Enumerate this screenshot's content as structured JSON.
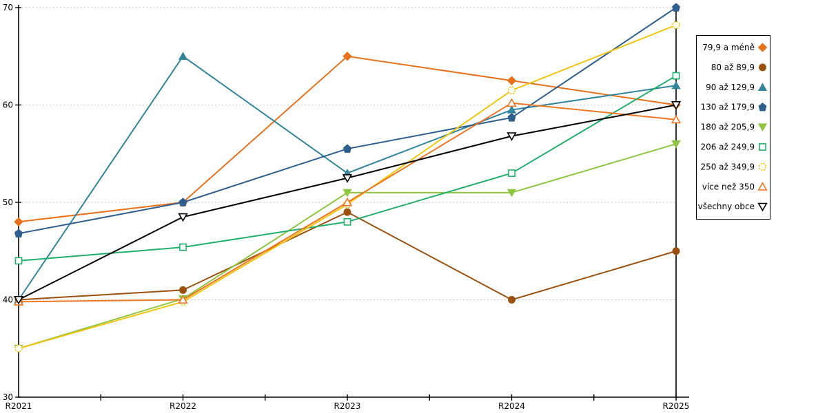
{
  "chart_data": {
    "type": "line",
    "title": "",
    "xlabel": "",
    "ylabel": "",
    "categories": [
      "R2021",
      "R2022",
      "R2023",
      "R2024",
      "R2025"
    ],
    "ylim": [
      30,
      70
    ],
    "yticks": [
      30,
      40,
      50,
      60,
      70
    ],
    "gridlines": [
      40,
      50,
      60,
      70
    ],
    "grid": "horizontal-dotted",
    "legend_position": "right",
    "background_color": "#ffffff",
    "axis_color": "#000000",
    "gridline_color": "#c6c6c6",
    "series": [
      {
        "name": "79,9 a méně",
        "color": "#e8701a",
        "marker": "diamond",
        "style": "filled",
        "values": [
          48,
          50,
          65,
          62.5,
          60
        ]
      },
      {
        "name": "80 až 89,9",
        "color": "#9c500f",
        "marker": "circle",
        "style": "filled",
        "values": [
          40,
          41,
          49,
          40,
          45
        ]
      },
      {
        "name": "90 až 129,9",
        "color": "#31859c",
        "marker": "triangle-up",
        "style": "filled",
        "values": [
          40,
          65,
          53,
          59.5,
          62
        ]
      },
      {
        "name": "130 až 179,9",
        "color": "#2e5f8e",
        "marker": "pentagon",
        "style": "filled",
        "values": [
          46.8,
          50,
          55.5,
          58.7,
          70
        ]
      },
      {
        "name": "180 až 205,9",
        "color": "#8ec641",
        "marker": "triangle-down",
        "style": "filled",
        "values": [
          35,
          40.1,
          51,
          51,
          56
        ]
      },
      {
        "name": "206 až 249,9",
        "color": "#1faf6b",
        "marker": "square",
        "style": "open",
        "values": [
          44,
          45.4,
          48,
          53,
          63
        ]
      },
      {
        "name": "250 až 349,9",
        "color": "#f2c50f",
        "marker": "circle",
        "style": "open",
        "values": [
          35,
          39.8,
          49.8,
          61.5,
          68.2
        ]
      },
      {
        "name": "více než 350",
        "color": "#f07622",
        "marker": "triangle-up",
        "style": "open",
        "values": [
          39.8,
          40,
          50,
          60.2,
          58.5
        ]
      },
      {
        "name": "všechny obce",
        "color": "#000000",
        "marker": "triangle-down",
        "style": "open",
        "values": [
          40,
          48.5,
          52.5,
          56.8,
          60
        ]
      }
    ]
  }
}
